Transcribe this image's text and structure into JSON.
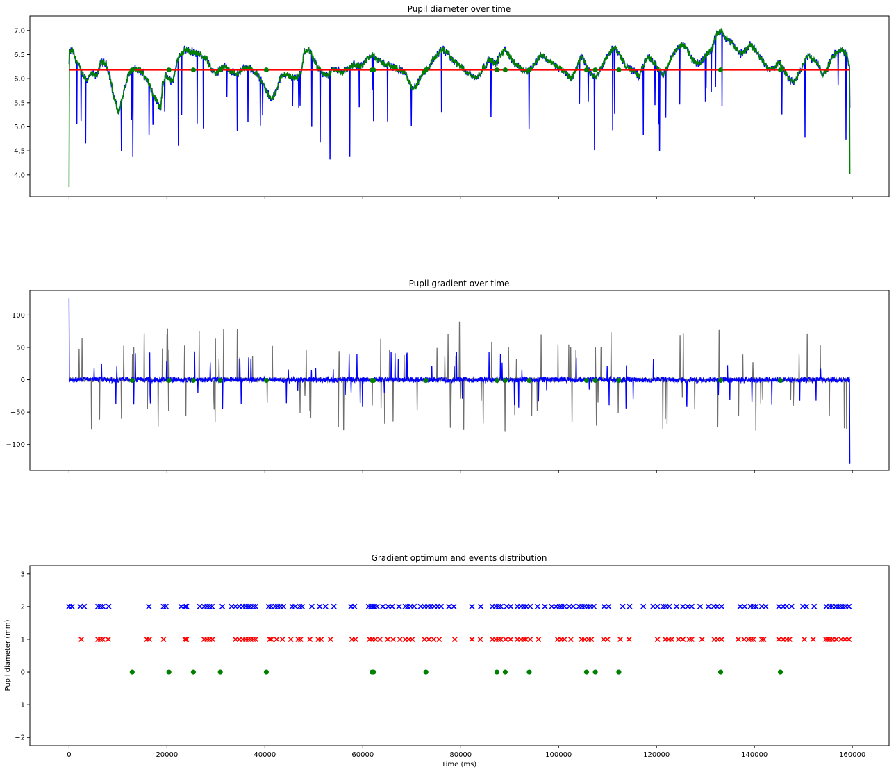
{
  "figure": {
    "shared_xlabel": "Time (ms)",
    "shared_xticks": [
      0,
      20000,
      40000,
      60000,
      80000,
      100000,
      120000,
      140000,
      160000
    ],
    "shared_xticklabels": [
      "0",
      "20000",
      "40000",
      "60000",
      "80000",
      "100000",
      "120000",
      "140000",
      "160000"
    ]
  },
  "chart_data": [
    {
      "type": "line",
      "title": "Pupil diameter over time",
      "xlabel": "",
      "ylabel": "",
      "xlim": [
        -8000,
        167500
      ],
      "ylim": [
        3.55,
        7.3
      ],
      "yticks": [
        4.0,
        4.5,
        5.0,
        5.5,
        6.0,
        6.5,
        7.0
      ],
      "yticklabels": [
        "4.0",
        "4.5",
        "5.0",
        "5.5",
        "6.0",
        "6.5",
        "7.0"
      ],
      "grid": false,
      "colors": {
        "raw": "#0000ff",
        "smoothed": "#008000",
        "mean": "#ff0000",
        "markers": "#008000"
      },
      "mean_line": {
        "y": 6.18,
        "x": [
          0,
          159500
        ]
      },
      "baseline_points": [
        [
          7.75,
          6.53
        ],
        [
          7.85,
          6.6
        ],
        [
          7.95,
          6.4
        ],
        [
          8.05,
          6.3
        ],
        [
          8.15,
          6.1
        ],
        [
          8.3,
          5.97
        ],
        [
          8.45,
          6.1
        ],
        [
          8.6,
          6.05
        ],
        [
          8.75,
          6.35
        ],
        [
          8.9,
          6.3
        ],
        [
          9.0,
          6.1
        ],
        [
          9.05,
          5.95
        ],
        [
          9.1,
          5.75
        ],
        [
          9.15,
          5.6
        ],
        [
          9.2,
          5.5
        ],
        [
          9.25,
          5.35
        ],
        [
          9.3,
          5.3
        ],
        [
          9.35,
          5.45
        ],
        [
          9.4,
          5.6
        ],
        [
          9.6,
          6.1
        ],
        [
          9.8,
          6.2
        ],
        [
          10.0,
          6.15
        ],
        [
          10.2,
          5.95
        ],
        [
          10.35,
          5.7
        ],
        [
          10.5,
          5.5
        ],
        [
          10.6,
          5.35
        ],
        [
          10.65,
          5.9
        ],
        [
          10.75,
          6.05
        ],
        [
          10.9,
          5.95
        ],
        [
          11.0,
          6.0
        ],
        [
          11.1,
          6.35
        ],
        [
          11.2,
          6.5
        ],
        [
          11.35,
          6.6
        ],
        [
          11.6,
          6.55
        ],
        [
          11.8,
          6.5
        ],
        [
          12.0,
          6.45
        ],
        [
          12.15,
          6.2
        ],
        [
          12.3,
          6.1
        ],
        [
          12.45,
          6.2
        ],
        [
          12.6,
          6.25
        ],
        [
          12.75,
          6.15
        ],
        [
          13.0,
          6.1
        ],
        [
          13.25,
          6.25
        ],
        [
          13.5,
          6.15
        ],
        [
          13.65,
          6.05
        ],
        [
          13.8,
          5.85
        ],
        [
          13.95,
          5.65
        ],
        [
          14.05,
          5.55
        ],
        [
          14.15,
          5.7
        ],
        [
          14.3,
          6.0
        ],
        [
          14.45,
          6.1
        ],
        [
          14.6,
          6.05
        ],
        [
          14.8,
          6.0
        ],
        [
          14.95,
          6.1
        ],
        [
          15.05,
          6.55
        ],
        [
          15.2,
          6.6
        ],
        [
          15.35,
          6.4
        ],
        [
          15.5,
          6.2
        ],
        [
          15.65,
          6.1
        ],
        [
          15.8,
          6.05
        ],
        [
          15.9,
          6.15
        ],
        [
          16.05,
          6.2
        ],
        [
          16.2,
          6.1
        ],
        [
          16.4,
          6.2
        ],
        [
          16.6,
          6.3
        ],
        [
          16.8,
          6.25
        ],
        [
          17.0,
          6.4
        ],
        [
          17.2,
          6.5
        ],
        [
          17.4,
          6.35
        ],
        [
          17.6,
          6.3
        ],
        [
          17.8,
          6.25
        ],
        [
          18.0,
          6.2
        ],
        [
          18.2,
          6.1
        ],
        [
          18.4,
          5.8
        ],
        [
          18.55,
          5.85
        ],
        [
          18.7,
          6.1
        ],
        [
          18.9,
          6.2
        ],
        [
          19.05,
          6.4
        ],
        [
          19.2,
          6.5
        ],
        [
          19.35,
          6.6
        ],
        [
          19.5,
          6.55
        ],
        [
          19.65,
          6.4
        ],
        [
          19.8,
          6.3
        ],
        [
          20.0,
          6.2
        ],
        [
          20.2,
          6.1
        ],
        [
          20.4,
          6.0
        ],
        [
          20.6,
          6.2
        ],
        [
          20.8,
          6.4
        ],
        [
          21.0,
          6.3
        ],
        [
          21.15,
          6.5
        ],
        [
          21.3,
          6.6
        ],
        [
          21.45,
          6.45
        ],
        [
          21.6,
          6.3
        ],
        [
          21.8,
          6.2
        ],
        [
          22.0,
          6.15
        ],
        [
          22.2,
          6.3
        ],
        [
          22.4,
          6.5
        ],
        [
          22.6,
          6.4
        ],
        [
          22.8,
          6.3
        ],
        [
          23.0,
          6.2
        ],
        [
          23.2,
          6.1
        ],
        [
          23.35,
          6.0
        ],
        [
          23.5,
          6.2
        ],
        [
          23.65,
          6.45
        ],
        [
          23.8,
          6.3
        ],
        [
          23.95,
          6.1
        ],
        [
          24.1,
          6.0
        ],
        [
          24.25,
          6.2
        ],
        [
          24.4,
          6.4
        ],
        [
          24.55,
          6.55
        ],
        [
          24.7,
          6.65
        ],
        [
          24.85,
          6.5
        ],
        [
          25.0,
          6.3
        ],
        [
          25.15,
          6.2
        ],
        [
          25.3,
          6.15
        ],
        [
          25.45,
          6.05
        ],
        [
          25.6,
          6.3
        ],
        [
          25.75,
          6.45
        ],
        [
          25.9,
          6.35
        ],
        [
          26.05,
          6.2
        ],
        [
          26.2,
          6.1
        ],
        [
          26.35,
          6.25
        ],
        [
          26.5,
          6.5
        ],
        [
          26.65,
          6.65
        ],
        [
          26.8,
          6.7
        ],
        [
          26.95,
          6.6
        ],
        [
          27.1,
          6.4
        ],
        [
          27.25,
          6.3
        ],
        [
          27.4,
          6.35
        ],
        [
          27.55,
          6.5
        ],
        [
          27.7,
          6.6
        ],
        [
          27.85,
          6.9
        ],
        [
          28.0,
          7.0
        ],
        [
          28.15,
          6.85
        ],
        [
          28.3,
          6.75
        ],
        [
          28.45,
          6.65
        ],
        [
          28.6,
          6.5
        ],
        [
          28.75,
          6.6
        ],
        [
          28.9,
          6.7
        ],
        [
          29.05,
          6.6
        ],
        [
          29.2,
          6.45
        ],
        [
          29.35,
          6.3
        ],
        [
          29.5,
          6.2
        ],
        [
          29.65,
          6.25
        ],
        [
          29.8,
          6.35
        ],
        [
          29.95,
          6.2
        ],
        [
          30.1,
          6.0
        ],
        [
          30.25,
          5.9
        ],
        [
          30.4,
          6.1
        ],
        [
          30.55,
          6.3
        ],
        [
          30.7,
          6.5
        ],
        [
          30.85,
          6.4
        ],
        [
          31.0,
          6.3
        ],
        [
          31.15,
          6.1
        ],
        [
          31.3,
          6.2
        ],
        [
          31.45,
          6.45
        ],
        [
          31.6,
          6.55
        ],
        [
          31.75,
          6.6
        ],
        [
          31.9,
          6.5
        ],
        [
          32.0,
          6.2
        ]
      ],
      "series": [
        {
          "name": "",
          "role": "raw",
          "color": "#0000ff"
        },
        {
          "name": "",
          "role": "smoothed",
          "color": "#008000"
        }
      ],
      "event_markers_x": [
        12900,
        20400,
        25400,
        30900,
        40300,
        61900,
        62200,
        72900,
        87400,
        89100,
        94000,
        105700,
        107500,
        112300,
        133100,
        145300
      ],
      "event_markers_y": 6.18
    },
    {
      "type": "line",
      "title": "Pupil gradient over time",
      "xlabel": "",
      "ylabel": "",
      "xlim": [
        -8000,
        167500
      ],
      "ylim": [
        -140,
        138
      ],
      "yticks": [
        -100,
        -50,
        0,
        50,
        100
      ],
      "yticklabels": [
        "−100",
        "−50",
        "0",
        "50",
        "100"
      ],
      "grid": false,
      "series": [
        {
          "name": "",
          "role": "raw-gradient",
          "color": "#555555"
        },
        {
          "name": "",
          "role": "smoothed-gradient",
          "color": "#0000ff"
        }
      ],
      "extremes": {
        "max": 126,
        "min": -130
      },
      "event_markers_x": [
        12900,
        20400,
        25400,
        30900,
        40300,
        61900,
        62200,
        72900,
        87400,
        89100,
        94000,
        105700,
        107500,
        112300,
        133100,
        145300
      ],
      "event_markers_y": -1
    },
    {
      "type": "scatter",
      "title": "Gradient optimum and events distribution",
      "xlabel": "Time (ms)",
      "ylabel": "Pupil diameter (mm)",
      "xlim": [
        -8000,
        167500
      ],
      "ylim": [
        -2.25,
        3.25
      ],
      "yticks": [
        -2,
        -1,
        0,
        1,
        2,
        3
      ],
      "yticklabels": [
        "−2",
        "−1",
        "0",
        "1",
        "2",
        "3"
      ],
      "grid": false,
      "series": [
        {
          "name": "",
          "y": 2,
          "marker": "x",
          "color": "#0000ff",
          "x": [
            0,
            600,
            2300,
            3100,
            5900,
            6400,
            6900,
            8100,
            16300,
            19300,
            19800,
            22900,
            23700,
            24000,
            26700,
            27600,
            28200,
            28700,
            29200,
            31300,
            33200,
            34000,
            34800,
            35500,
            36100,
            36600,
            37000,
            37600,
            38100,
            40800,
            41300,
            42100,
            42600,
            43200,
            43800,
            45600,
            46200,
            47100,
            47600,
            49600,
            51200,
            52400,
            54100,
            57600,
            58300,
            61200,
            61700,
            62100,
            62400,
            62900,
            64100,
            65200,
            66000,
            67400,
            68700,
            69200,
            69800,
            70500,
            71800,
            72600,
            73300,
            73900,
            74600,
            75300,
            76000,
            77600,
            78600,
            82300,
            84100,
            86500,
            87200,
            87700,
            88200,
            89400,
            90200,
            91600,
            92300,
            92900,
            93400,
            94200,
            95700,
            97200,
            98600,
            99500,
            100200,
            100600,
            101200,
            102200,
            103000,
            104200,
            104800,
            105300,
            106000,
            106500,
            107200,
            109300,
            110200,
            113100,
            114500,
            117300,
            119300,
            120200,
            121400,
            121900,
            122600,
            124100,
            125400,
            126400,
            127200,
            128900,
            130600,
            131700,
            132400,
            133300,
            137100,
            138000,
            139200,
            139800,
            140300,
            141500,
            142300,
            145000,
            145900,
            146600,
            147600,
            149900,
            150600,
            152200,
            154700,
            155400,
            155900,
            156600,
            157100,
            157600,
            158100,
            158600,
            159300
          ]
        },
        {
          "name": "",
          "y": 1,
          "marker": "x",
          "color": "#ff0000",
          "x": [
            2500,
            5900,
            6400,
            6900,
            8000,
            15900,
            16400,
            19300,
            23700,
            24000,
            27600,
            28200,
            28700,
            29300,
            34000,
            34800,
            35500,
            36100,
            36600,
            37100,
            37600,
            38100,
            41000,
            41300,
            42400,
            43600,
            45300,
            46800,
            47300,
            49200,
            50900,
            51500,
            53400,
            57800,
            58500,
            61400,
            61900,
            62600,
            63500,
            65100,
            66200,
            67600,
            68700,
            69400,
            70100,
            72600,
            73500,
            74500,
            75600,
            78800,
            82300,
            84000,
            86500,
            87200,
            87700,
            88200,
            89200,
            90200,
            91600,
            92300,
            92900,
            93300,
            94200,
            95900,
            99800,
            100500,
            101200,
            102500,
            104700,
            105300,
            106100,
            106700,
            109200,
            110000,
            112600,
            114400,
            120200,
            121800,
            122500,
            123100,
            124500,
            125400,
            126700,
            127200,
            129300,
            131800,
            132500,
            133300,
            136700,
            137900,
            138800,
            139300,
            139800,
            141500,
            141900,
            145000,
            145900,
            146600,
            147200,
            150200,
            152000,
            154600,
            155000,
            155400,
            156000,
            156700,
            157700,
            158500,
            159300
          ]
        },
        {
          "name": "",
          "y": 0,
          "marker": "o",
          "color": "#008000",
          "x": [
            12900,
            20400,
            25400,
            30900,
            40300,
            61900,
            62200,
            72900,
            87400,
            89100,
            94000,
            105700,
            107500,
            112300,
            133100,
            145300
          ]
        }
      ]
    }
  ]
}
